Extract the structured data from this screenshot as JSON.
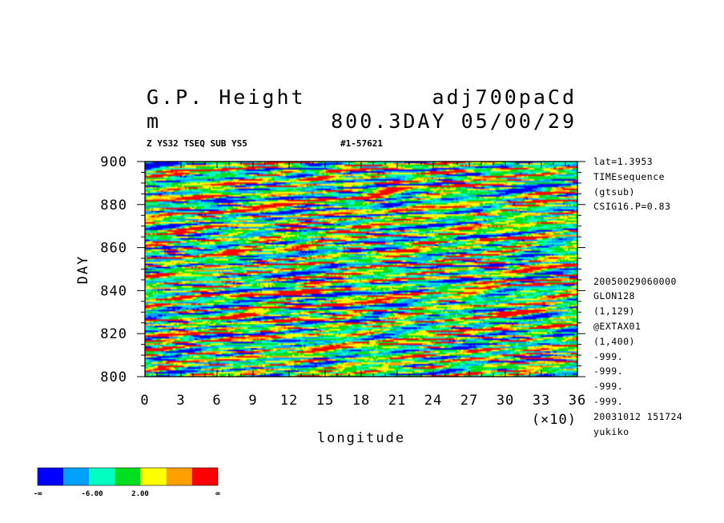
{
  "header": {
    "title_left": "G.P. Height",
    "units": "m",
    "title_right": "adj700paCd",
    "subtitle_right": "800.3DAY 05/00/29",
    "small_left": "Z YS32 TSEQ SUB YS5",
    "small_right": "#1-57621"
  },
  "side_info": [
    "lat=1.3953",
    "TIMEsequence",
    "(gtsub)",
    "CSIG16.P=0.83",
    "20050029060000",
    "GLON128",
    "(1,129)",
    "@EXTAX01",
    "(1,400)",
    "-999.",
    "-999.",
    "-999.",
    "-999.",
    "20031012 151724",
    "yukiko"
  ],
  "colorbar": {
    "colors": [
      "#0000ff",
      "#00a0ff",
      "#00ffc0",
      "#00e020",
      "#ffff00",
      "#ffa000",
      "#ff0000"
    ],
    "labels": [
      "-∞",
      "-6.00",
      "2.00",
      "∞"
    ]
  },
  "chart_data": {
    "type": "heatmap",
    "xlabel": "longitude",
    "ylabel": "DAY",
    "x_multiplier": "(×10)",
    "xlim": [
      0,
      36
    ],
    "ylim": [
      800,
      900
    ],
    "x_ticks": [
      "0",
      "3",
      "6",
      "9",
      "12",
      "15",
      "18",
      "21",
      "24",
      "27",
      "30",
      "33",
      "36"
    ],
    "y_ticks": [
      "800",
      "820",
      "840",
      "860",
      "880",
      "900"
    ],
    "contour_levels": [
      "-∞",
      "-6.00",
      "2.00",
      "∞"
    ],
    "fill_colors": [
      "#0000ff",
      "#00a0ff",
      "#00ffc0",
      "#00e020",
      "#ffff00",
      "#ffa000",
      "#ff0000"
    ]
  }
}
